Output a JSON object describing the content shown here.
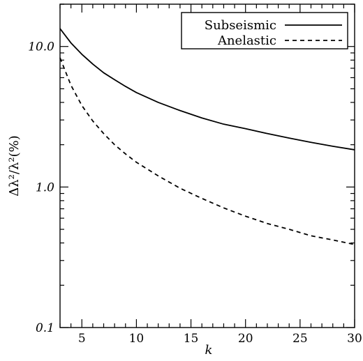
{
  "chart_data": {
    "type": "line",
    "title": "",
    "xlabel": "k",
    "ylabel": "Δλ²/λ²(%)",
    "xlim": [
      3,
      30
    ],
    "ylim": [
      0.1,
      20
    ],
    "yscale": "log",
    "grid": false,
    "legend_position": "top-right",
    "x_ticks": [
      5,
      10,
      15,
      20,
      25,
      30
    ],
    "x_tick_labels": [
      "5",
      "10",
      "15",
      "20",
      "25",
      "30"
    ],
    "y_ticks": [
      0.1,
      1.0,
      10.0
    ],
    "y_tick_labels": [
      "0.1",
      "1.0",
      "10.0"
    ],
    "series": [
      {
        "name": "Subseismic",
        "style": "solid",
        "color": "#000000",
        "x": [
          3,
          4,
          5,
          6,
          7,
          8,
          9,
          10,
          12,
          14,
          16,
          18,
          20,
          22,
          24,
          26,
          28,
          30
        ],
        "y": [
          13.4,
          10.6,
          8.8,
          7.5,
          6.5,
          5.8,
          5.2,
          4.7,
          4.0,
          3.5,
          3.1,
          2.8,
          2.6,
          2.4,
          2.23,
          2.08,
          1.95,
          1.84
        ]
      },
      {
        "name": "Anelastic",
        "style": "dashed",
        "color": "#000000",
        "x": [
          3,
          4,
          5,
          6,
          7,
          8,
          9,
          10,
          12,
          14,
          16,
          18,
          20,
          22,
          24,
          26,
          28,
          30
        ],
        "y": [
          8.3,
          5.3,
          3.8,
          2.95,
          2.4,
          2.0,
          1.72,
          1.5,
          1.2,
          0.98,
          0.83,
          0.71,
          0.62,
          0.55,
          0.5,
          0.45,
          0.42,
          0.39
        ]
      }
    ]
  }
}
